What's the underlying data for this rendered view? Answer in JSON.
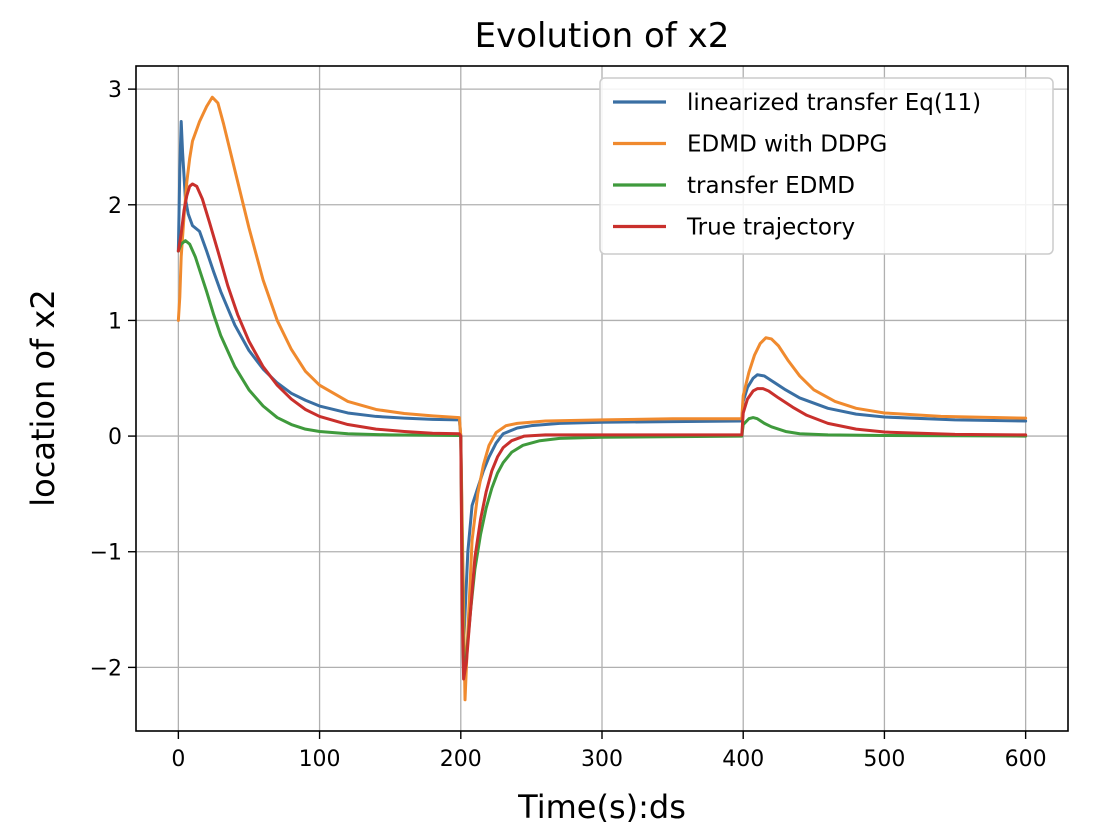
{
  "chart_data": {
    "type": "line",
    "title": "Evolution of x2",
    "xlabel": "Time(s):ds",
    "ylabel": "location of x2",
    "xlim": [
      -30,
      630
    ],
    "ylim": [
      -2.55,
      3.2
    ],
    "xticks": [
      0,
      100,
      200,
      300,
      400,
      500,
      600
    ],
    "yticks": [
      -2,
      -1,
      0,
      1,
      2,
      3
    ],
    "ytick_labels": [
      "−2",
      "−1",
      "0",
      "1",
      "2",
      "3"
    ],
    "grid": true,
    "legend_position": "top-right",
    "series": [
      {
        "name": "linearized transfer Eq(11)",
        "color": "#3a6fa3",
        "points": [
          [
            0,
            1.6
          ],
          [
            1,
            2.3
          ],
          [
            2,
            2.72
          ],
          [
            3,
            2.45
          ],
          [
            5,
            2.05
          ],
          [
            7,
            1.92
          ],
          [
            10,
            1.82
          ],
          [
            15,
            1.77
          ],
          [
            20,
            1.6
          ],
          [
            25,
            1.42
          ],
          [
            30,
            1.25
          ],
          [
            40,
            0.96
          ],
          [
            50,
            0.74
          ],
          [
            60,
            0.58
          ],
          [
            70,
            0.46
          ],
          [
            80,
            0.37
          ],
          [
            90,
            0.31
          ],
          [
            100,
            0.26
          ],
          [
            120,
            0.2
          ],
          [
            140,
            0.17
          ],
          [
            160,
            0.155
          ],
          [
            180,
            0.145
          ],
          [
            199,
            0.14
          ],
          [
            200,
            0.0
          ],
          [
            202,
            -1.8
          ],
          [
            205,
            -1.0
          ],
          [
            208,
            -0.6
          ],
          [
            212,
            -0.45
          ],
          [
            216,
            -0.3
          ],
          [
            220,
            -0.18
          ],
          [
            225,
            -0.06
          ],
          [
            230,
            0.02
          ],
          [
            240,
            0.07
          ],
          [
            250,
            0.09
          ],
          [
            270,
            0.11
          ],
          [
            300,
            0.12
          ],
          [
            350,
            0.125
          ],
          [
            399,
            0.13
          ],
          [
            400,
            0.3
          ],
          [
            403,
            0.42
          ],
          [
            407,
            0.5
          ],
          [
            410,
            0.53
          ],
          [
            415,
            0.52
          ],
          [
            420,
            0.48
          ],
          [
            430,
            0.4
          ],
          [
            440,
            0.33
          ],
          [
            460,
            0.24
          ],
          [
            480,
            0.19
          ],
          [
            500,
            0.165
          ],
          [
            550,
            0.14
          ],
          [
            600,
            0.13
          ]
        ]
      },
      {
        "name": "EDMD with DDPG",
        "color": "#f08a2e",
        "points": [
          [
            0,
            1.0
          ],
          [
            1,
            1.2
          ],
          [
            2,
            1.55
          ],
          [
            4,
            1.9
          ],
          [
            6,
            2.2
          ],
          [
            8,
            2.4
          ],
          [
            10,
            2.55
          ],
          [
            15,
            2.72
          ],
          [
            20,
            2.85
          ],
          [
            24,
            2.93
          ],
          [
            28,
            2.88
          ],
          [
            32,
            2.7
          ],
          [
            40,
            2.3
          ],
          [
            50,
            1.8
          ],
          [
            60,
            1.35
          ],
          [
            70,
            1.0
          ],
          [
            80,
            0.75
          ],
          [
            90,
            0.56
          ],
          [
            100,
            0.44
          ],
          [
            120,
            0.3
          ],
          [
            140,
            0.23
          ],
          [
            160,
            0.195
          ],
          [
            180,
            0.175
          ],
          [
            199,
            0.16
          ],
          [
            200,
            0.0
          ],
          [
            202,
            -1.5
          ],
          [
            203,
            -2.28
          ],
          [
            205,
            -1.7
          ],
          [
            208,
            -0.9
          ],
          [
            212,
            -0.5
          ],
          [
            216,
            -0.25
          ],
          [
            220,
            -0.08
          ],
          [
            225,
            0.03
          ],
          [
            232,
            0.09
          ],
          [
            240,
            0.11
          ],
          [
            260,
            0.13
          ],
          [
            300,
            0.14
          ],
          [
            350,
            0.15
          ],
          [
            399,
            0.15
          ],
          [
            400,
            0.35
          ],
          [
            404,
            0.55
          ],
          [
            408,
            0.7
          ],
          [
            412,
            0.8
          ],
          [
            416,
            0.85
          ],
          [
            420,
            0.84
          ],
          [
            425,
            0.78
          ],
          [
            432,
            0.65
          ],
          [
            440,
            0.52
          ],
          [
            450,
            0.4
          ],
          [
            465,
            0.3
          ],
          [
            480,
            0.24
          ],
          [
            500,
            0.2
          ],
          [
            540,
            0.17
          ],
          [
            600,
            0.155
          ]
        ]
      },
      {
        "name": "transfer EDMD",
        "color": "#3f9a3c",
        "points": [
          [
            0,
            1.6
          ],
          [
            2,
            1.66
          ],
          [
            5,
            1.69
          ],
          [
            8,
            1.66
          ],
          [
            12,
            1.55
          ],
          [
            16,
            1.4
          ],
          [
            20,
            1.25
          ],
          [
            25,
            1.05
          ],
          [
            30,
            0.87
          ],
          [
            40,
            0.6
          ],
          [
            50,
            0.4
          ],
          [
            60,
            0.26
          ],
          [
            70,
            0.16
          ],
          [
            80,
            0.1
          ],
          [
            90,
            0.06
          ],
          [
            100,
            0.04
          ],
          [
            120,
            0.02
          ],
          [
            150,
            0.01
          ],
          [
            199,
            0.005
          ],
          [
            200,
            0.0
          ],
          [
            201,
            -1.2
          ],
          [
            202,
            -2.05
          ],
          [
            204,
            -1.9
          ],
          [
            207,
            -1.5
          ],
          [
            210,
            -1.15
          ],
          [
            214,
            -0.85
          ],
          [
            218,
            -0.62
          ],
          [
            222,
            -0.45
          ],
          [
            226,
            -0.32
          ],
          [
            230,
            -0.23
          ],
          [
            236,
            -0.14
          ],
          [
            244,
            -0.08
          ],
          [
            256,
            -0.04
          ],
          [
            270,
            -0.02
          ],
          [
            300,
            -0.01
          ],
          [
            399,
            0.0
          ],
          [
            400,
            0.1
          ],
          [
            404,
            0.15
          ],
          [
            407,
            0.16
          ],
          [
            410,
            0.15
          ],
          [
            415,
            0.11
          ],
          [
            420,
            0.08
          ],
          [
            430,
            0.04
          ],
          [
            440,
            0.02
          ],
          [
            460,
            0.01
          ],
          [
            500,
            0.005
          ],
          [
            600,
            0.0
          ]
        ]
      },
      {
        "name": "True trajectory",
        "color": "#c9302c",
        "points": [
          [
            0,
            1.6
          ],
          [
            2,
            1.75
          ],
          [
            4,
            1.95
          ],
          [
            6,
            2.08
          ],
          [
            8,
            2.16
          ],
          [
            10,
            2.18
          ],
          [
            13,
            2.16
          ],
          [
            17,
            2.05
          ],
          [
            22,
            1.85
          ],
          [
            28,
            1.6
          ],
          [
            35,
            1.3
          ],
          [
            42,
            1.05
          ],
          [
            50,
            0.82
          ],
          [
            60,
            0.6
          ],
          [
            70,
            0.44
          ],
          [
            80,
            0.32
          ],
          [
            90,
            0.23
          ],
          [
            100,
            0.17
          ],
          [
            120,
            0.1
          ],
          [
            140,
            0.06
          ],
          [
            160,
            0.04
          ],
          [
            180,
            0.025
          ],
          [
            199,
            0.02
          ],
          [
            200,
            0.0
          ],
          [
            201,
            -1.5
          ],
          [
            202,
            -2.1
          ],
          [
            204,
            -1.95
          ],
          [
            207,
            -1.5
          ],
          [
            210,
            -1.05
          ],
          [
            214,
            -0.72
          ],
          [
            218,
            -0.48
          ],
          [
            222,
            -0.3
          ],
          [
            226,
            -0.18
          ],
          [
            230,
            -0.1
          ],
          [
            236,
            -0.04
          ],
          [
            245,
            0.0
          ],
          [
            260,
            0.01
          ],
          [
            300,
            0.01
          ],
          [
            399,
            0.01
          ],
          [
            400,
            0.2
          ],
          [
            403,
            0.32
          ],
          [
            407,
            0.39
          ],
          [
            410,
            0.41
          ],
          [
            414,
            0.41
          ],
          [
            418,
            0.39
          ],
          [
            425,
            0.33
          ],
          [
            435,
            0.25
          ],
          [
            445,
            0.18
          ],
          [
            460,
            0.11
          ],
          [
            480,
            0.06
          ],
          [
            500,
            0.035
          ],
          [
            550,
            0.015
          ],
          [
            600,
            0.01
          ]
        ]
      }
    ]
  }
}
